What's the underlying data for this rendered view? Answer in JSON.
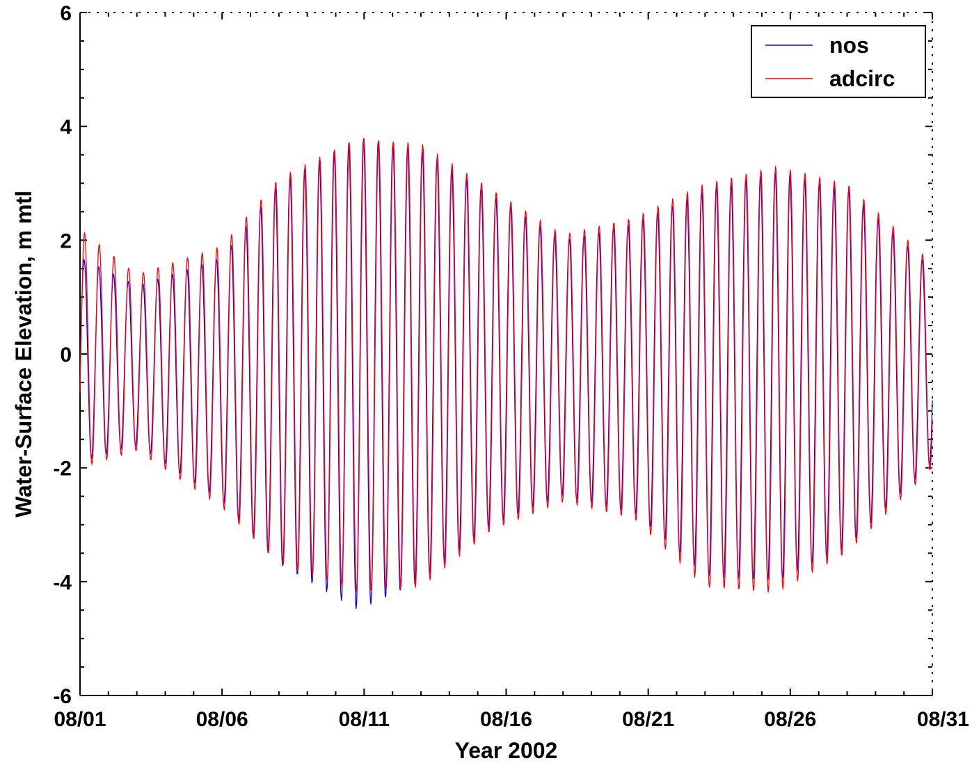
{
  "chart_data": {
    "type": "line",
    "title": "",
    "xlabel": "Year 2002",
    "ylabel": "Water-Surface Elevation, m mtl",
    "xlim": [
      "2002-08-01",
      "2002-08-31"
    ],
    "ylim": [
      -6,
      6
    ],
    "x_tick_labels": [
      "08/01",
      "08/06",
      "08/11",
      "08/16",
      "08/21",
      "08/26",
      "08/31"
    ],
    "y_ticks": [
      -6,
      -4,
      -2,
      0,
      2,
      4,
      6
    ],
    "y_tick_labels": [
      "-6",
      "-4",
      "-2",
      "0",
      "2",
      "4",
      "6"
    ],
    "grid": false,
    "legend": {
      "position": "top-right",
      "entries": [
        "nos",
        "adcirc"
      ]
    },
    "series": [
      {
        "name": "nos",
        "color": "#0000ff",
        "period_hours": 12.42,
        "start_phase_cycles": 0.72,
        "envelope": {
          "days": [
            0,
            2,
            5,
            7,
            9.8,
            12,
            14.5,
            17,
            19.5,
            22,
            24.5,
            27,
            30
          ],
          "highs": [
            1.7,
            1.2,
            1.7,
            3.0,
            3.8,
            3.6,
            2.8,
            2.0,
            2.3,
            2.9,
            3.2,
            2.9,
            1.5
          ],
          "lows": [
            -1.9,
            -1.6,
            -2.6,
            -3.7,
            -4.5,
            -4.0,
            -3.0,
            -2.5,
            -2.8,
            -3.9,
            -4.0,
            -3.4,
            -1.9
          ]
        }
      },
      {
        "name": "adcirc",
        "color": "#ff0000",
        "period_hours": 12.42,
        "start_phase_cycles": 0.69,
        "envelope": {
          "days": [
            0,
            2,
            5,
            7,
            9.8,
            12,
            14.5,
            17,
            19.5,
            22,
            24.5,
            27,
            30
          ],
          "highs": [
            2.2,
            1.4,
            1.9,
            3.1,
            3.8,
            3.7,
            2.9,
            2.1,
            2.4,
            3.0,
            3.3,
            3.0,
            1.6
          ],
          "lows": [
            -2.0,
            -1.7,
            -2.7,
            -3.7,
            -4.2,
            -4.1,
            -3.1,
            -2.6,
            -2.9,
            -4.1,
            -4.2,
            -3.5,
            -2.0
          ]
        }
      }
    ]
  }
}
